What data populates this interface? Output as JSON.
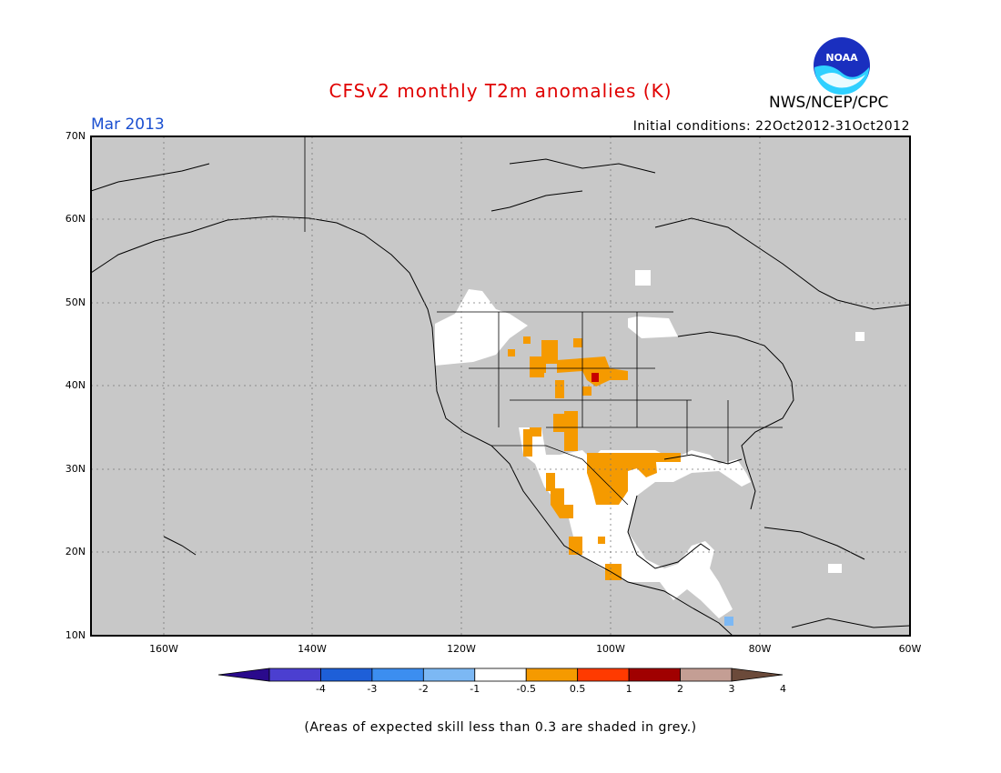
{
  "header": {
    "title": "CFSv2 monthly T2m anomalies (K)",
    "month": "Mar 2013",
    "agency": "NWS/NCEP/CPC",
    "initial_conditions": "Initial conditions: 22Oct2012-31Oct2012",
    "logo_text": "NOAA"
  },
  "map": {
    "lat_labels": [
      "70N",
      "60N",
      "50N",
      "40N",
      "30N",
      "20N",
      "10N"
    ],
    "lon_labels": [
      "160W",
      "140W",
      "120W",
      "100W",
      "80W",
      "60W"
    ],
    "background_color": "#c8c8c8"
  },
  "colorbar": {
    "tick_labels": [
      "-4",
      "-3",
      "-2",
      "-1",
      "-0.5",
      "0.5",
      "1",
      "2",
      "3",
      "4"
    ],
    "colors": [
      "#2a0a8c",
      "#4b3fd0",
      "#1e5fd8",
      "#3c8ef0",
      "#7cb8f4",
      "#ffffff",
      "#f59a00",
      "#ff3a00",
      "#a00000",
      "#c49e94",
      "#6b4a3a"
    ]
  },
  "footnote": "(Areas of expected skill less than 0.3 are shaded in grey.)"
}
